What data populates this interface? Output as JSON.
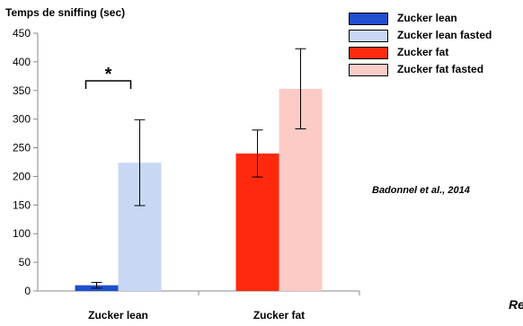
{
  "chart_data": {
    "type": "bar",
    "ylabel": "Temps de sniffing (sec)",
    "xlabel": "",
    "ylim": [
      0,
      450
    ],
    "yticks": [
      0,
      50,
      100,
      150,
      200,
      250,
      300,
      350,
      400,
      450
    ],
    "categories": [
      "Zucker lean",
      "Zucker fat"
    ],
    "series": [
      {
        "name": "Zucker lean",
        "color": "#1f4fcf",
        "values": [
          10,
          null
        ],
        "errors": [
          5,
          null
        ]
      },
      {
        "name": "Zucker lean fasted",
        "color": "#c8d8f4",
        "values": [
          224,
          null
        ],
        "errors": [
          75,
          null
        ]
      },
      {
        "name": "Zucker fat",
        "color": "#ff2a0e",
        "values": [
          null,
          240
        ],
        "errors": [
          null,
          41
        ]
      },
      {
        "name": "Zucker fat fasted",
        "color": "#fccbc6",
        "values": [
          null,
          353
        ],
        "errors": [
          null,
          70
        ]
      }
    ],
    "annotations": [
      {
        "text": "*",
        "between": [
          "Zucker lean",
          "Zucker lean fasted"
        ]
      }
    ],
    "legend_position": "top-right",
    "grid": false
  },
  "citation": "Badonnel et al., 2014",
  "corner_text": "Re"
}
